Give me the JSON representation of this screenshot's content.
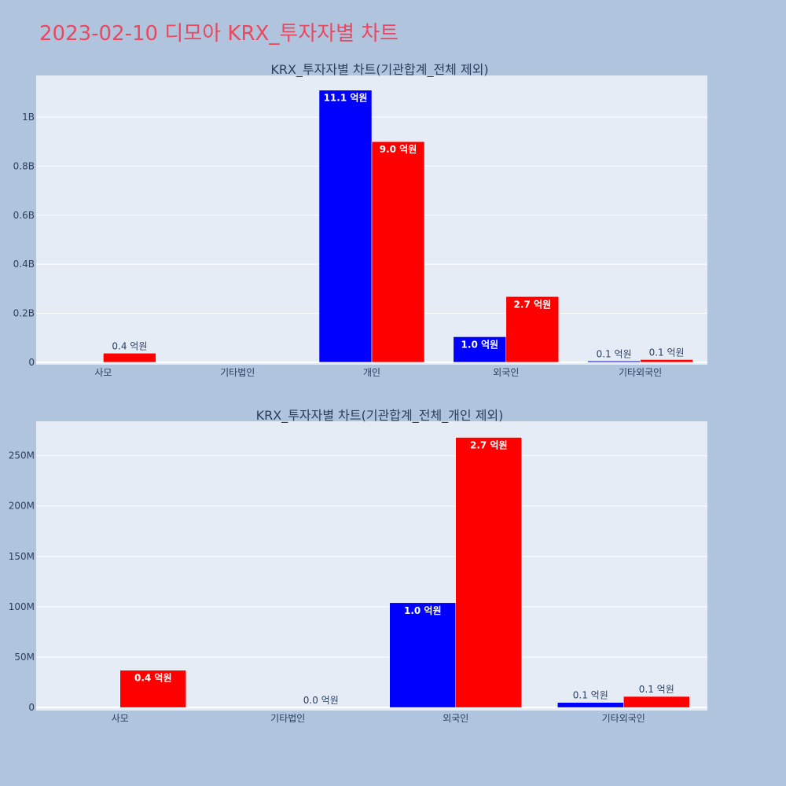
{
  "page_title": "2023-02-10 디모아 KRX_투자자별 차트",
  "colors": {
    "buy": "#0000ff",
    "sell": "#ff0000"
  },
  "chart_data": [
    {
      "type": "bar",
      "title": "KRX_투자자별 차트(기관합계_전체 제외)",
      "categories": [
        "사모",
        "기타법인",
        "개인",
        "외국인",
        "기타외국인"
      ],
      "series": [
        {
          "values": [
            0,
            0,
            1110000000,
            104000000,
            5000000
          ],
          "labels": [
            "",
            "",
            "11.1 억원",
            "1.0 억원",
            "0.1 억원"
          ],
          "color": "#0000ff"
        },
        {
          "values": [
            37000000,
            0,
            900000000,
            268000000,
            11000000
          ],
          "labels": [
            "0.4 억원",
            "",
            "9.0 억원",
            "2.7 억원",
            "0.1 억원"
          ],
          "color": "#ff0000"
        }
      ],
      "yticks": [
        0,
        200000000,
        400000000,
        600000000,
        800000000,
        1000000000
      ],
      "ytick_labels": [
        "0",
        "0.2B",
        "0.4B",
        "0.6B",
        "0.8B",
        "1B"
      ],
      "ylim": [
        -10000000,
        1170000000
      ]
    },
    {
      "type": "bar",
      "title": "KRX_투자자별 차트(기관합계_전체_개인 제외)",
      "categories": [
        "사모",
        "기타법인",
        "외국인",
        "기타외국인"
      ],
      "series": [
        {
          "values": [
            0,
            0,
            104000000,
            5000000
          ],
          "labels": [
            "",
            "",
            "1.0 억원",
            "0.1 억원"
          ],
          "color": "#0000ff"
        },
        {
          "values": [
            37000000,
            0,
            268000000,
            11000000
          ],
          "labels": [
            "0.4 억원",
            "0.0 억원",
            "2.7 억원",
            "0.1 억원"
          ],
          "color": "#ff0000"
        }
      ],
      "yticks": [
        0,
        50000000,
        100000000,
        150000000,
        200000000,
        250000000
      ],
      "ytick_labels": [
        "0",
        "50M",
        "100M",
        "150M",
        "200M",
        "250M"
      ],
      "ylim": [
        -3000000,
        284000000
      ]
    }
  ]
}
